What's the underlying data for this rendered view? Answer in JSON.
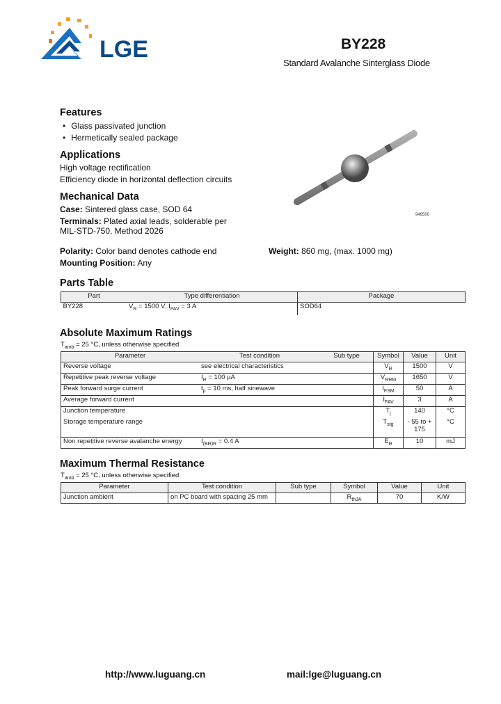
{
  "header": {
    "brand": "LGE",
    "part_number": "BY228",
    "subtitle": "Standard Avalanche Sinterglass Diode",
    "image_label": "949500"
  },
  "features": {
    "title": "Features",
    "items": [
      "Glass passivated junction",
      "Hermetically sealed package"
    ]
  },
  "applications": {
    "title": "Applications",
    "items": [
      "High voltage rectification",
      "Efficiency diode in horizontal deflection circuits"
    ]
  },
  "mechanical": {
    "title": "Mechanical Data",
    "case_label": "Case:",
    "case": " Sintered glass case, SOD 64",
    "terminals_label": "Terminals:",
    "terminals": " Plated axial leads, solderable per",
    "terminals2": "MIL-STD-750, Method 2026",
    "polarity_label": "Polarity:",
    "polarity": " Color band denotes cathode end",
    "weight_label": "Weight:",
    "weight": " 860  mg, (max. 1000 mg)",
    "mounting_label": "Mounting Position:",
    "mounting": " Any"
  },
  "parts_table": {
    "title": "Parts Table",
    "headers": [
      "Part",
      "Type differentiation",
      "Package"
    ],
    "rows": [
      {
        "part": "BY228",
        "vr": "V",
        "vr_sub": "R",
        "vr_val": " = 1500 V; I",
        "if_sub": "FAV",
        "if_val": " = 3 A",
        "package": "SOD64"
      }
    ]
  },
  "abs_max": {
    "title": "Absolute Maximum Ratings",
    "note": "T",
    "note_sub": "amb",
    "note_rest": " = 25 °C, unless otherwise specified",
    "headers": [
      "Parameter",
      "Test condition",
      "Sub type",
      "Symbol",
      "Value",
      "Unit"
    ],
    "rows": [
      {
        "param": "Reverse voltage",
        "cond": "see electrical characteristics",
        "cond_sub": "",
        "cond_rest": "",
        "sym": "V",
        "sym_sub": "R",
        "value": "1500",
        "unit": "V"
      },
      {
        "param": "Repetitive peak reverse voltage",
        "cond": "I",
        "cond_sub": "R",
        "cond_rest": " = 100 µA",
        "sym": "V",
        "sym_sub": "RRM",
        "value": "1650",
        "unit": "V"
      },
      {
        "param": "Peak forward surge current",
        "cond": "t",
        "cond_sub": "p",
        "cond_rest": " = 10 ms, half sinewave",
        "sym": "I",
        "sym_sub": "FSM",
        "value": "50",
        "unit": "A"
      },
      {
        "param": "Average forward current",
        "cond": "",
        "cond_sub": "",
        "cond_rest": "",
        "sym": "I",
        "sym_sub": "FAV",
        "value": "3",
        "unit": "A"
      },
      {
        "param": "Junction temperature",
        "cond": "",
        "cond_sub": "",
        "cond_rest": "",
        "sym": "T",
        "sym_sub": "j",
        "value": "140",
        "unit": "°C"
      },
      {
        "param": "Storage temperature range",
        "cond": "",
        "cond_sub": "",
        "cond_rest": "",
        "sym": "T",
        "sym_sub": "stg",
        "value": "- 55 to + 175",
        "unit": "°C"
      },
      {
        "param": "Non repetitive reverse avalanche energy",
        "cond": "I",
        "cond_sub": "(BR)R",
        "cond_rest": " = 0.4 A",
        "sym": "E",
        "sym_sub": "R",
        "value": "10",
        "unit": "mJ"
      }
    ]
  },
  "thermal": {
    "title": "Maximum Thermal Resistance",
    "note": "T",
    "note_sub": "amb",
    "note_rest": " = 25 °C, unless otherwise specified",
    "headers": [
      "Parameter",
      "Test condition",
      "Sub type",
      "Symbol",
      "Value",
      "Unit"
    ],
    "rows": [
      {
        "param": "Junction ambient",
        "cond": "on PC board with spacing 25 mm",
        "subtype": "",
        "sym": "R",
        "sym_sub": "thJA",
        "value": "70",
        "unit": "K/W"
      }
    ]
  },
  "footer": {
    "website": "http://www.luguang.cn",
    "email": "mail:lge@luguang.cn"
  },
  "colors": {
    "logo_blue": "#0a4a8a",
    "logo_orange": "#f5a020"
  }
}
